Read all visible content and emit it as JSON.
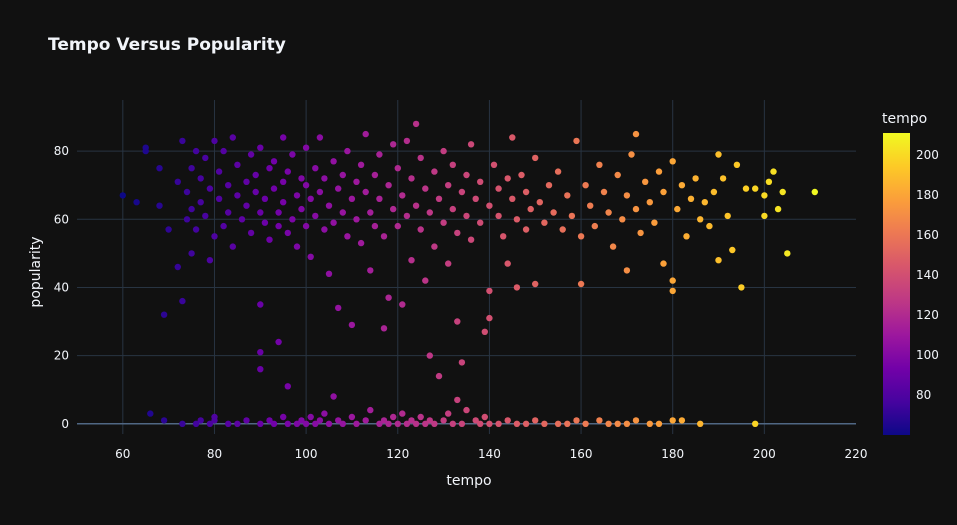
{
  "chart_data": {
    "type": "scatter",
    "title": "Tempo Versus Popularity",
    "xlabel": "tempo",
    "ylabel": "popularity",
    "xlim": [
      50,
      220
    ],
    "ylim": [
      -3,
      95
    ],
    "xticks": [
      60,
      80,
      100,
      120,
      140,
      160,
      180,
      200,
      220
    ],
    "yticks": [
      0,
      20,
      40,
      60,
      80
    ],
    "colorbar": {
      "title": "tempo",
      "range": [
        60,
        211
      ],
      "ticks": [
        80,
        100,
        120,
        140,
        160,
        180,
        200
      ],
      "colorscale": [
        "#0d0887",
        "#46039f",
        "#7201a8",
        "#9c179e",
        "#bd3786",
        "#d8576b",
        "#ed7953",
        "#fb9f3a",
        "#fdca26",
        "#f0f921"
      ]
    },
    "grid": true,
    "background": "#111111",
    "gridcolor": "#283442",
    "points": [
      [
        60,
        67
      ],
      [
        63,
        65
      ],
      [
        65,
        80
      ],
      [
        65,
        81
      ],
      [
        66,
        3
      ],
      [
        68,
        75
      ],
      [
        68,
        64
      ],
      [
        69,
        32
      ],
      [
        69,
        1
      ],
      [
        70,
        57
      ],
      [
        72,
        71
      ],
      [
        72,
        46
      ],
      [
        73,
        36
      ],
      [
        73,
        83
      ],
      [
        74,
        68
      ],
      [
        74,
        60
      ],
      [
        75,
        75
      ],
      [
        75,
        63
      ],
      [
        75,
        50
      ],
      [
        76,
        80
      ],
      [
        76,
        57
      ],
      [
        77,
        65
      ],
      [
        77,
        72
      ],
      [
        78,
        61
      ],
      [
        78,
        78
      ],
      [
        79,
        48
      ],
      [
        79,
        69
      ],
      [
        80,
        83
      ],
      [
        80,
        55
      ],
      [
        81,
        66
      ],
      [
        81,
        74
      ],
      [
        82,
        58
      ],
      [
        82,
        80
      ],
      [
        83,
        70
      ],
      [
        83,
        62
      ],
      [
        84,
        84
      ],
      [
        84,
        52
      ],
      [
        85,
        67
      ],
      [
        85,
        76
      ],
      [
        86,
        60
      ],
      [
        87,
        71
      ],
      [
        87,
        64
      ],
      [
        88,
        79
      ],
      [
        88,
        56
      ],
      [
        89,
        68
      ],
      [
        89,
        73
      ],
      [
        90,
        62
      ],
      [
        90,
        35
      ],
      [
        90,
        21
      ],
      [
        90,
        16
      ],
      [
        90,
        81
      ],
      [
        91,
        59
      ],
      [
        91,
        66
      ],
      [
        92,
        75
      ],
      [
        92,
        54
      ],
      [
        93,
        69
      ],
      [
        93,
        77
      ],
      [
        94,
        62
      ],
      [
        94,
        24
      ],
      [
        94,
        58
      ],
      [
        95,
        84
      ],
      [
        95,
        71
      ],
      [
        95,
        65
      ],
      [
        96,
        11
      ],
      [
        96,
        56
      ],
      [
        96,
        74
      ],
      [
        97,
        60
      ],
      [
        97,
        79
      ],
      [
        98,
        67
      ],
      [
        98,
        52
      ],
      [
        99,
        72
      ],
      [
        99,
        63
      ],
      [
        100,
        81
      ],
      [
        100,
        58
      ],
      [
        100,
        70
      ],
      [
        101,
        66
      ],
      [
        101,
        49
      ],
      [
        102,
        75
      ],
      [
        102,
        61
      ],
      [
        103,
        68
      ],
      [
        103,
        84
      ],
      [
        104,
        57
      ],
      [
        104,
        72
      ],
      [
        105,
        64
      ],
      [
        105,
        44
      ],
      [
        106,
        77
      ],
      [
        106,
        59
      ],
      [
        107,
        69
      ],
      [
        107,
        34
      ],
      [
        108,
        62
      ],
      [
        108,
        73
      ],
      [
        109,
        55
      ],
      [
        109,
        80
      ],
      [
        110,
        66
      ],
      [
        110,
        29
      ],
      [
        111,
        71
      ],
      [
        111,
        60
      ],
      [
        112,
        76
      ],
      [
        112,
        53
      ],
      [
        113,
        68
      ],
      [
        113,
        85
      ],
      [
        114,
        62
      ],
      [
        114,
        45
      ],
      [
        115,
        73
      ],
      [
        115,
        58
      ],
      [
        116,
        79
      ],
      [
        116,
        66
      ],
      [
        117,
        55
      ],
      [
        117,
        28
      ],
      [
        118,
        70
      ],
      [
        118,
        37
      ],
      [
        119,
        63
      ],
      [
        119,
        82
      ],
      [
        120,
        58
      ],
      [
        120,
        75
      ],
      [
        121,
        67
      ],
      [
        121,
        35
      ],
      [
        122,
        61
      ],
      [
        122,
        83
      ],
      [
        123,
        72
      ],
      [
        123,
        48
      ],
      [
        124,
        64
      ],
      [
        124,
        88
      ],
      [
        125,
        57
      ],
      [
        125,
        78
      ],
      [
        126,
        69
      ],
      [
        126,
        42
      ],
      [
        127,
        62
      ],
      [
        127,
        20
      ],
      [
        128,
        74
      ],
      [
        128,
        52
      ],
      [
        129,
        66
      ],
      [
        129,
        14
      ],
      [
        130,
        59
      ],
      [
        130,
        80
      ],
      [
        131,
        70
      ],
      [
        131,
        47
      ],
      [
        132,
        63
      ],
      [
        132,
        76
      ],
      [
        133,
        56
      ],
      [
        133,
        30
      ],
      [
        134,
        68
      ],
      [
        134,
        18
      ],
      [
        135,
        61
      ],
      [
        135,
        73
      ],
      [
        136,
        54
      ],
      [
        136,
        82
      ],
      [
        137,
        66
      ],
      [
        138,
        59
      ],
      [
        138,
        71
      ],
      [
        139,
        27
      ],
      [
        140,
        64
      ],
      [
        140,
        39
      ],
      [
        140,
        31
      ],
      [
        141,
        76
      ],
      [
        142,
        61
      ],
      [
        142,
        69
      ],
      [
        143,
        55
      ],
      [
        144,
        72
      ],
      [
        144,
        47
      ],
      [
        145,
        66
      ],
      [
        145,
        84
      ],
      [
        146,
        60
      ],
      [
        146,
        40
      ],
      [
        147,
        73
      ],
      [
        148,
        57
      ],
      [
        148,
        68
      ],
      [
        149,
        63
      ],
      [
        150,
        78
      ],
      [
        150,
        41
      ],
      [
        151,
        65
      ],
      [
        152,
        59
      ],
      [
        153,
        70
      ],
      [
        154,
        62
      ],
      [
        155,
        74
      ],
      [
        156,
        57
      ],
      [
        157,
        67
      ],
      [
        158,
        61
      ],
      [
        159,
        83
      ],
      [
        160,
        55
      ],
      [
        160,
        41
      ],
      [
        161,
        70
      ],
      [
        162,
        64
      ],
      [
        163,
        58
      ],
      [
        164,
        76
      ],
      [
        165,
        68
      ],
      [
        166,
        62
      ],
      [
        167,
        52
      ],
      [
        168,
        73
      ],
      [
        169,
        60
      ],
      [
        170,
        67
      ],
      [
        170,
        45
      ],
      [
        171,
        79
      ],
      [
        172,
        63
      ],
      [
        172,
        85
      ],
      [
        173,
        56
      ],
      [
        174,
        71
      ],
      [
        175,
        65
      ],
      [
        176,
        59
      ],
      [
        177,
        74
      ],
      [
        178,
        47
      ],
      [
        178,
        68
      ],
      [
        180,
        77
      ],
      [
        180,
        42
      ],
      [
        180,
        39
      ],
      [
        181,
        63
      ],
      [
        182,
        70
      ],
      [
        183,
        55
      ],
      [
        184,
        66
      ],
      [
        185,
        72
      ],
      [
        186,
        60
      ],
      [
        187,
        65
      ],
      [
        188,
        58
      ],
      [
        189,
        68
      ],
      [
        190,
        79
      ],
      [
        190,
        48
      ],
      [
        191,
        72
      ],
      [
        192,
        61
      ],
      [
        193,
        51
      ],
      [
        194,
        76
      ],
      [
        195,
        40
      ],
      [
        196,
        69
      ],
      [
        198,
        69
      ],
      [
        200,
        67
      ],
      [
        200,
        61
      ],
      [
        201,
        71
      ],
      [
        202,
        74
      ],
      [
        203,
        63
      ],
      [
        204,
        68
      ],
      [
        205,
        50
      ],
      [
        211,
        68
      ],
      [
        73,
        0
      ],
      [
        76,
        0
      ],
      [
        77,
        1
      ],
      [
        79,
        0
      ],
      [
        80,
        1
      ],
      [
        80,
        2
      ],
      [
        83,
        0
      ],
      [
        85,
        0
      ],
      [
        87,
        1
      ],
      [
        90,
        0
      ],
      [
        92,
        1
      ],
      [
        93,
        0
      ],
      [
        95,
        2
      ],
      [
        96,
        0
      ],
      [
        98,
        0
      ],
      [
        99,
        1
      ],
      [
        100,
        0
      ],
      [
        101,
        2
      ],
      [
        102,
        0
      ],
      [
        103,
        1
      ],
      [
        104,
        3
      ],
      [
        105,
        0
      ],
      [
        106,
        8
      ],
      [
        107,
        1
      ],
      [
        108,
        0
      ],
      [
        110,
        2
      ],
      [
        111,
        0
      ],
      [
        113,
        1
      ],
      [
        114,
        4
      ],
      [
        116,
        0
      ],
      [
        117,
        1
      ],
      [
        118,
        0
      ],
      [
        119,
        2
      ],
      [
        120,
        0
      ],
      [
        121,
        3
      ],
      [
        122,
        0
      ],
      [
        123,
        1
      ],
      [
        124,
        0
      ],
      [
        125,
        2
      ],
      [
        126,
        0
      ],
      [
        127,
        1
      ],
      [
        128,
        0
      ],
      [
        130,
        1
      ],
      [
        131,
        3
      ],
      [
        132,
        0
      ],
      [
        133,
        7
      ],
      [
        134,
        0
      ],
      [
        135,
        4
      ],
      [
        137,
        1
      ],
      [
        138,
        0
      ],
      [
        139,
        2
      ],
      [
        140,
        0
      ],
      [
        142,
        0
      ],
      [
        144,
        1
      ],
      [
        146,
        0
      ],
      [
        148,
        0
      ],
      [
        150,
        1
      ],
      [
        152,
        0
      ],
      [
        155,
        0
      ],
      [
        157,
        0
      ],
      [
        159,
        1
      ],
      [
        161,
        0
      ],
      [
        164,
        1
      ],
      [
        166,
        0
      ],
      [
        168,
        0
      ],
      [
        170,
        0
      ],
      [
        172,
        1
      ],
      [
        175,
        0
      ],
      [
        177,
        0
      ],
      [
        180,
        1
      ],
      [
        182,
        1
      ],
      [
        186,
        0
      ],
      [
        198,
        0
      ]
    ]
  }
}
